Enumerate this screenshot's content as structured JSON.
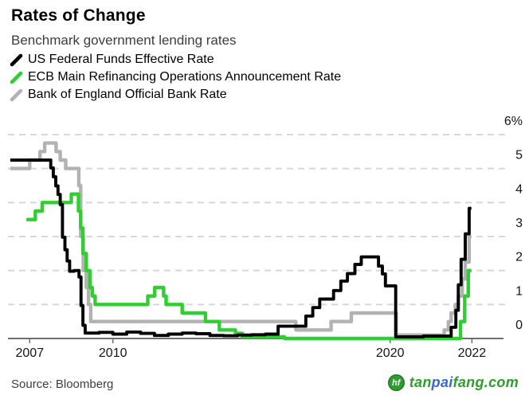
{
  "header": {
    "title": "Rates of Change",
    "subtitle": "Benchmark government lending rates"
  },
  "legend": {
    "items": [
      {
        "label": "US Federal Funds Effective Rate",
        "color": "#000000"
      },
      {
        "label": "ECB Main Refinancing Operations Announcement Rate",
        "color": "#32CD32"
      },
      {
        "label": "Bank of England Official Bank Rate",
        "color": "#B2B2B2"
      }
    ]
  },
  "footer": {
    "source": "Source: Bloomberg",
    "watermark": {
      "icon": "hf-leaf-logo",
      "parts": [
        {
          "text": "tan",
          "color": "#2E9E2E"
        },
        {
          "text": "pai",
          "color": "#3A66CC"
        },
        {
          "text": "fang",
          "color": "#2E9E2E"
        },
        {
          "text": ".com",
          "color": "#2E9E2E"
        }
      ]
    }
  },
  "chart_data": {
    "type": "line",
    "line_style": "step",
    "title": "Rates of Change",
    "subtitle": "Benchmark government lending rates",
    "xlabel": "",
    "ylabel": "",
    "y_unit": "%",
    "ylim": [
      0,
      6
    ],
    "x_range": [
      2006.2,
      2024.0
    ],
    "grid": "dashed-horizontal",
    "legend_position": "top-left",
    "x_ticks": [
      {
        "label": "2007",
        "year": 2007
      },
      {
        "label": "2010",
        "year": 2010
      },
      {
        "label": "2020",
        "year": 2020
      },
      {
        "label": "2022",
        "year": 2022.95
      }
    ],
    "y_ticks": [
      {
        "label": "6%",
        "value": 6
      },
      {
        "label": "5",
        "value": 5
      },
      {
        "label": "4",
        "value": 4
      },
      {
        "label": "3",
        "value": 3
      },
      {
        "label": "2",
        "value": 2
      },
      {
        "label": "1",
        "value": 1
      },
      {
        "label": "0",
        "value": 0
      }
    ],
    "series": [
      {
        "name": "Bank of England Official Bank Rate",
        "color": "#B2B2B2",
        "points": [
          [
            2006.3,
            5.0
          ],
          [
            2007.0,
            5.25
          ],
          [
            2007.37,
            5.5
          ],
          [
            2007.54,
            5.75
          ],
          [
            2007.95,
            5.5
          ],
          [
            2008.1,
            5.25
          ],
          [
            2008.3,
            5.0
          ],
          [
            2008.77,
            4.5
          ],
          [
            2008.84,
            3.0
          ],
          [
            2008.93,
            2.0
          ],
          [
            2009.04,
            1.5
          ],
          [
            2009.12,
            1.0
          ],
          [
            2009.2,
            0.5
          ],
          [
            2016.6,
            0.25
          ],
          [
            2017.87,
            0.5
          ],
          [
            2018.6,
            0.75
          ],
          [
            2020.22,
            0.1
          ],
          [
            2021.95,
            0.25
          ],
          [
            2022.1,
            0.5
          ],
          [
            2022.2,
            0.75
          ],
          [
            2022.35,
            1.0
          ],
          [
            2022.46,
            1.25
          ],
          [
            2022.6,
            1.75
          ],
          [
            2022.71,
            2.25
          ],
          [
            2022.85,
            3.0
          ],
          [
            2022.93,
            3.0
          ]
        ]
      },
      {
        "name": "ECB Main Refinancing Operations Announcement Rate",
        "color": "#32CD32",
        "points": [
          [
            2006.88,
            3.5
          ],
          [
            2007.2,
            3.75
          ],
          [
            2007.45,
            4.0
          ],
          [
            2008.5,
            4.25
          ],
          [
            2008.76,
            3.75
          ],
          [
            2008.84,
            3.25
          ],
          [
            2008.92,
            2.5
          ],
          [
            2009.04,
            2.0
          ],
          [
            2009.17,
            1.5
          ],
          [
            2009.26,
            1.25
          ],
          [
            2009.36,
            1.0
          ],
          [
            2011.26,
            1.25
          ],
          [
            2011.51,
            1.5
          ],
          [
            2011.83,
            1.25
          ],
          [
            2011.92,
            1.0
          ],
          [
            2012.5,
            0.75
          ],
          [
            2013.34,
            0.5
          ],
          [
            2013.84,
            0.25
          ],
          [
            2014.42,
            0.15
          ],
          [
            2014.67,
            0.05
          ],
          [
            2016.19,
            0.0
          ],
          [
            2022.54,
            0.5
          ],
          [
            2022.69,
            1.25
          ],
          [
            2022.82,
            2.0
          ],
          [
            2022.93,
            2.0
          ]
        ]
      },
      {
        "name": "US Federal Funds Effective Rate",
        "color": "#000000",
        "points": [
          [
            2006.3,
            5.25
          ],
          [
            2007.7,
            5.25
          ],
          [
            2007.76,
            5.02
          ],
          [
            2007.85,
            4.76
          ],
          [
            2007.94,
            4.49
          ],
          [
            2008.02,
            4.24
          ],
          [
            2008.1,
            3.94
          ],
          [
            2008.18,
            2.98
          ],
          [
            2008.27,
            2.61
          ],
          [
            2008.35,
            2.28
          ],
          [
            2008.44,
            1.98
          ],
          [
            2008.6,
            2.0
          ],
          [
            2008.78,
            1.81
          ],
          [
            2008.85,
            0.97
          ],
          [
            2008.92,
            0.39
          ],
          [
            2009.0,
            0.16
          ],
          [
            2009.5,
            0.18
          ],
          [
            2010.0,
            0.13
          ],
          [
            2010.5,
            0.19
          ],
          [
            2011.0,
            0.15
          ],
          [
            2011.5,
            0.09
          ],
          [
            2012.0,
            0.13
          ],
          [
            2012.5,
            0.16
          ],
          [
            2013.0,
            0.14
          ],
          [
            2013.5,
            0.09
          ],
          [
            2014.0,
            0.08
          ],
          [
            2014.5,
            0.1
          ],
          [
            2015.0,
            0.11
          ],
          [
            2015.5,
            0.13
          ],
          [
            2015.96,
            0.36
          ],
          [
            2016.96,
            0.66
          ],
          [
            2017.21,
            0.91
          ],
          [
            2017.46,
            1.16
          ],
          [
            2017.96,
            1.41
          ],
          [
            2018.22,
            1.69
          ],
          [
            2018.46,
            1.91
          ],
          [
            2018.73,
            2.18
          ],
          [
            2018.96,
            2.4
          ],
          [
            2019.58,
            2.13
          ],
          [
            2019.72,
            1.9
          ],
          [
            2019.83,
            1.55
          ],
          [
            2020.2,
            0.05
          ],
          [
            2021.2,
            0.07
          ],
          [
            2022.2,
            0.33
          ],
          [
            2022.37,
            0.83
          ],
          [
            2022.46,
            1.58
          ],
          [
            2022.56,
            2.33
          ],
          [
            2022.71,
            3.08
          ],
          [
            2022.85,
            3.83
          ],
          [
            2022.93,
            3.83
          ]
        ]
      }
    ]
  }
}
